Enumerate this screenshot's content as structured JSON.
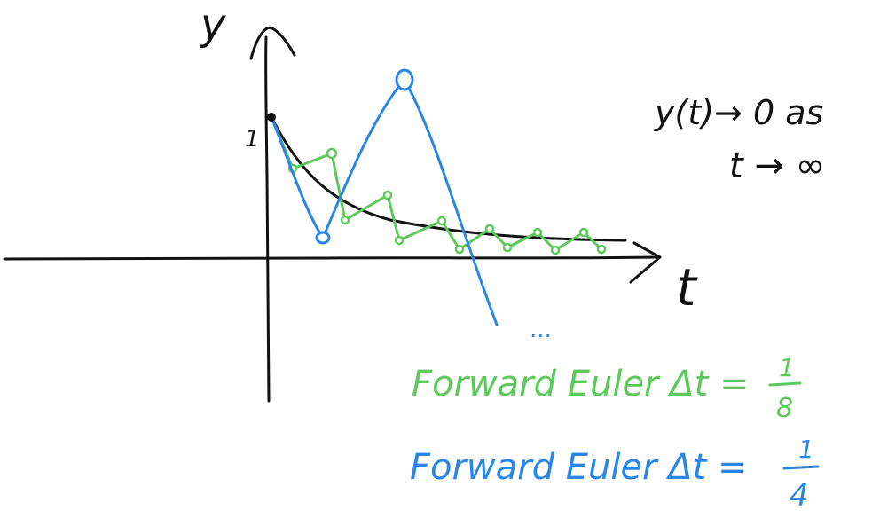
{
  "axes": {
    "y_label": "y",
    "x_label": "t",
    "y_tick": "1"
  },
  "annotation": {
    "line1": "y(t)→ 0 as",
    "line2": "t → ∞"
  },
  "ellipsis": "...",
  "legend": {
    "green": {
      "prefix": "Forward Euler Δt =",
      "num": "1",
      "den": "8",
      "color": "#5ec95b"
    },
    "blue": {
      "prefix": "Forward Euler Δt =",
      "num": "1",
      "den": "4",
      "color": "#2a86e6"
    }
  },
  "colors": {
    "exact": "#111111",
    "green": "#5ec95b",
    "blue": "#2a86e6"
  }
}
